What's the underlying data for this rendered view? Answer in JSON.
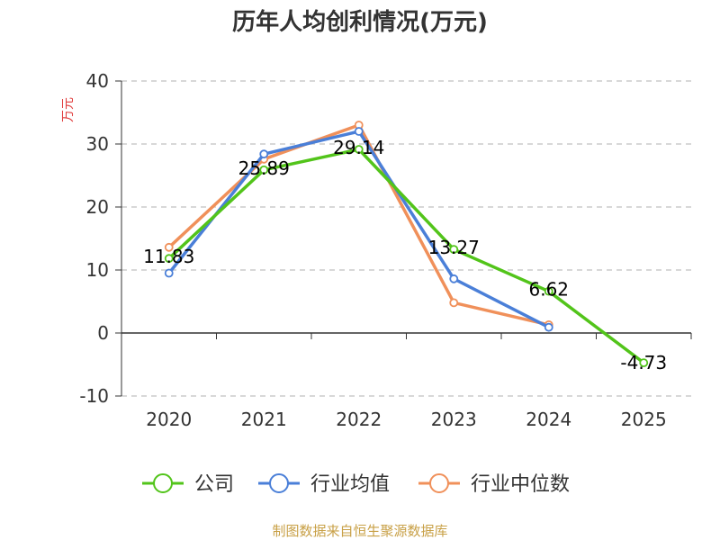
{
  "chart_data": {
    "type": "line",
    "title": "历年人均创利情况(万元)",
    "xlabel": "",
    "ylabel": "万元",
    "categories": [
      "2020",
      "2021",
      "2022",
      "2023",
      "2024",
      "2025"
    ],
    "ylim": [
      -10,
      40
    ],
    "yticks": [
      -10,
      0,
      10,
      20,
      30,
      40
    ],
    "ytick_labels": [
      "-10",
      "0",
      "10",
      "20",
      "30",
      "40"
    ],
    "grid": true,
    "legend_position": "bottom",
    "series": [
      {
        "name": "公司",
        "color": "#52c41a",
        "values": [
          11.83,
          25.89,
          29.14,
          13.27,
          6.62,
          -4.73
        ],
        "labels": [
          "11.83",
          "25.89",
          "29.14",
          "13.27",
          "6.62",
          "-4.73"
        ]
      },
      {
        "name": "行业均值",
        "color": "#4a7fd8",
        "values": [
          9.5,
          28.4,
          32.0,
          8.6,
          0.9,
          null
        ]
      },
      {
        "name": "行业中位数",
        "color": "#f0905a",
        "values": [
          13.6,
          27.6,
          33.0,
          4.8,
          1.3,
          null
        ]
      }
    ],
    "ylabel_color": "#e03c3c",
    "source": "制图数据来自恒生聚源数据库",
    "source_color": "#c8a046"
  }
}
